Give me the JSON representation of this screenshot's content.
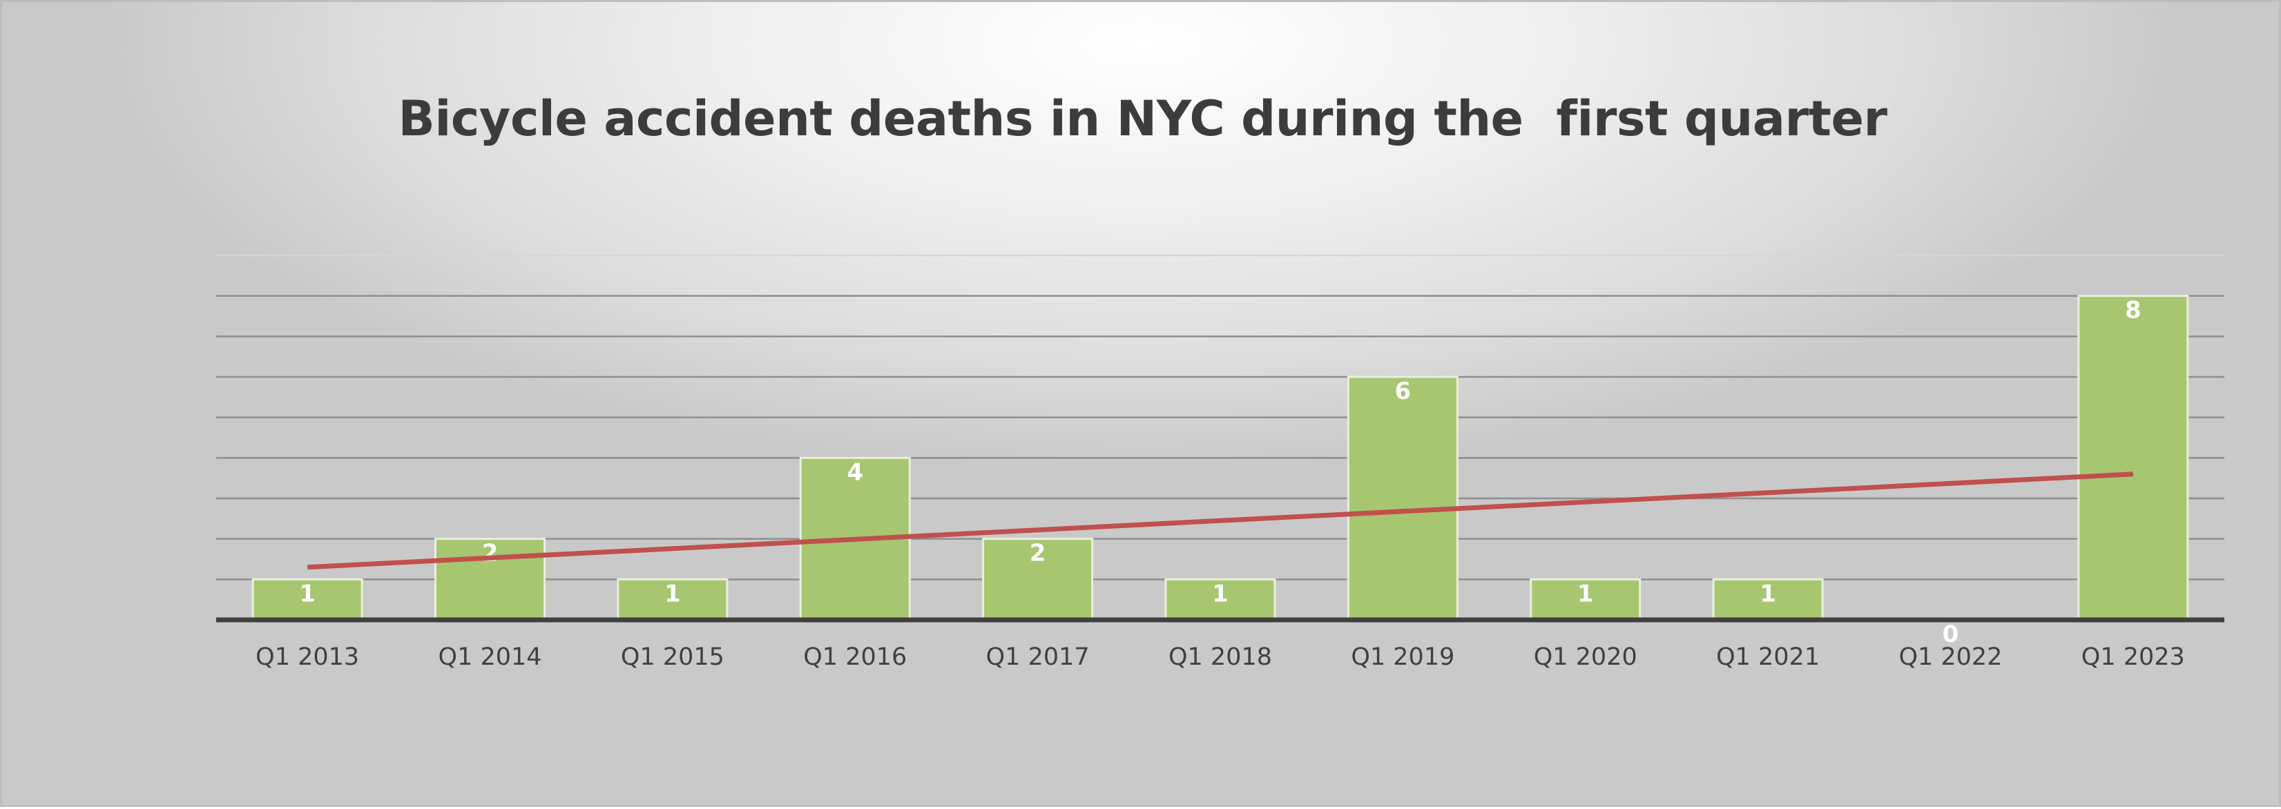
{
  "chart_data": {
    "type": "bar",
    "title": "Bicycle accident deaths in NYC during the  first quarter",
    "xlabel": "",
    "ylabel": "",
    "categories": [
      "Q1 2013",
      "Q1 2014",
      "Q1 2015",
      "Q1 2016",
      "Q1 2017",
      "Q1 2018",
      "Q1 2019",
      "Q1 2020",
      "Q1 2021",
      "Q1 2022",
      "Q1 2023"
    ],
    "values": [
      1,
      2,
      1,
      4,
      2,
      1,
      6,
      1,
      1,
      0,
      8
    ],
    "ylim": [
      0,
      9
    ],
    "grid": true,
    "legend": "none",
    "data_labels": true,
    "trendline": {
      "type": "linear",
      "start": 1.3,
      "end": 3.6
    },
    "colors": {
      "bar": "#a7c670",
      "trendline": "#c0504d",
      "title": "#3c3c3c"
    }
  }
}
